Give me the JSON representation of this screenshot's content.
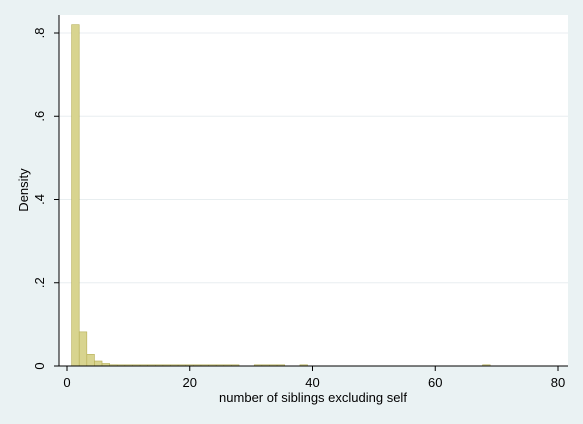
{
  "chart_data": {
    "type": "bar",
    "title": "",
    "xlabel": "number of siblings excluding self",
    "ylabel": "Density",
    "xlim": [
      -2,
      82
    ],
    "ylim": [
      0,
      0.84
    ],
    "bin_width": 1.24,
    "bin_start": 0.75,
    "xticks": [
      0,
      20,
      40,
      60,
      80
    ],
    "xtick_labels": [
      "0",
      "20",
      "40",
      "60",
      "80"
    ],
    "yticks": [
      0,
      0.2,
      0.4,
      0.6,
      0.8
    ],
    "ytick_labels": [
      "0",
      ".2",
      ".4",
      ".6",
      ".8"
    ],
    "grid": true,
    "values": [
      0.82,
      0.082,
      0.028,
      0.012,
      0.006,
      0.003,
      0.002,
      0.0015,
      0.001,
      0.001,
      0.001,
      0.001,
      0.001,
      0.001,
      0.001,
      0.001,
      0.001,
      0.001,
      0.001,
      0.001,
      0.001,
      0.001,
      0,
      0,
      0.001,
      0.001,
      0.001,
      0.001,
      0,
      0,
      0.001,
      0,
      0,
      0,
      0,
      0,
      0,
      0,
      0,
      0,
      0,
      0,
      0,
      0,
      0,
      0,
      0,
      0,
      0,
      0,
      0,
      0,
      0,
      0,
      0.001
    ],
    "colors": {
      "bar_fill": "#d8d48f",
      "bar_stroke": "#b5ae55",
      "plot_bg": "#ffffff",
      "page_bg": "#eaf2f3",
      "grid": "#e8eef0"
    }
  }
}
